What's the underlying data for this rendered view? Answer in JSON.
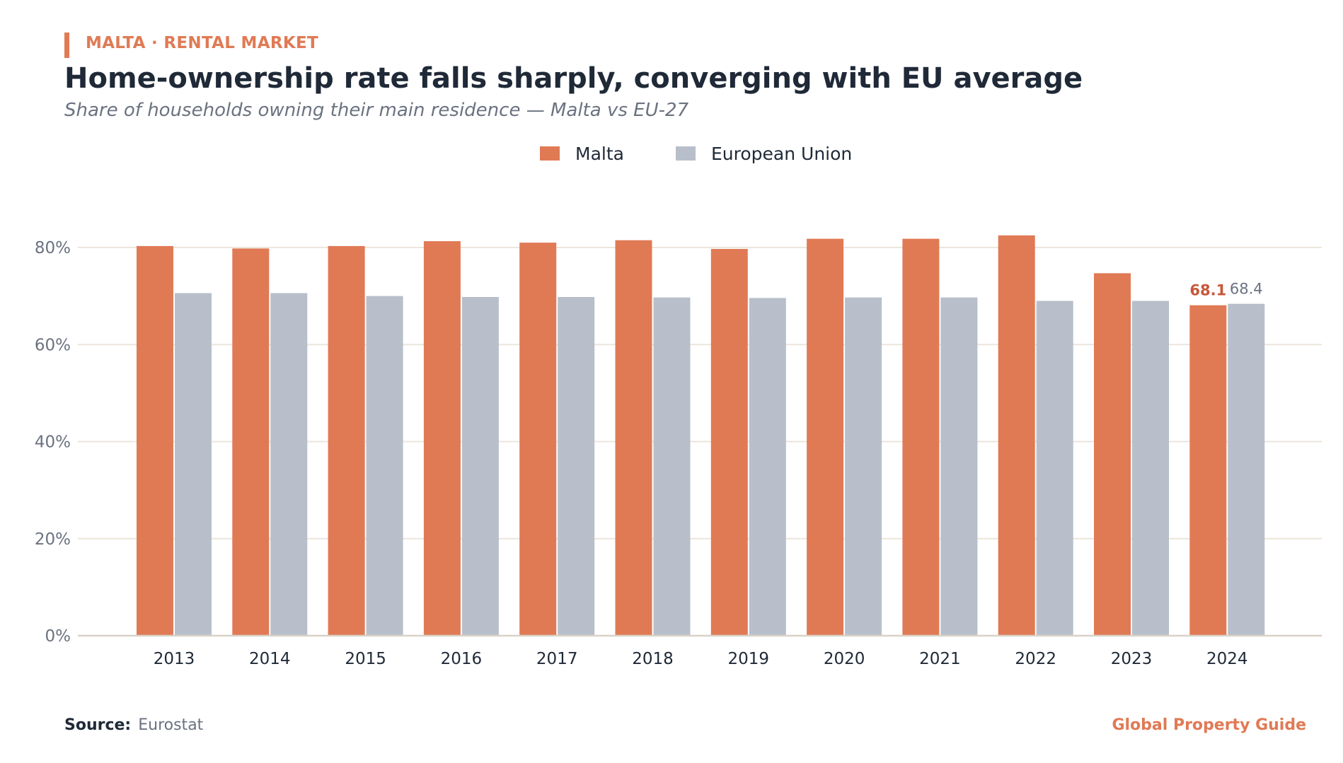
{
  "header": {
    "kicker": "MALTA · RENTAL MARKET",
    "title": "Home-ownership rate falls sharply, converging with EU average",
    "subtitle": "Share of households owning their main residence — Malta vs EU-27"
  },
  "footer": {
    "source_label": "Source:",
    "source_text": "Eurostat",
    "brand": "Global Property Guide"
  },
  "colors": {
    "malta": "#e07a55",
    "eu": "#b8bfca",
    "grid": "#ece6dc",
    "axis": "#d9d2c7",
    "tick_text": "#6b7280",
    "label_malta": "#c8573a",
    "label_eu": "#6b7280"
  },
  "chart_data": {
    "type": "bar",
    "categories": [
      "2013",
      "2014",
      "2015",
      "2016",
      "2017",
      "2018",
      "2019",
      "2020",
      "2021",
      "2022",
      "2023",
      "2024"
    ],
    "series": [
      {
        "name": "Malta",
        "values": [
          80.3,
          79.8,
          80.3,
          81.3,
          81.0,
          81.5,
          79.7,
          81.8,
          81.8,
          82.5,
          74.7,
          68.1
        ]
      },
      {
        "name": "European Union",
        "values": [
          70.6,
          70.6,
          70.0,
          69.8,
          69.8,
          69.7,
          69.6,
          69.7,
          69.7,
          69.0,
          69.0,
          68.4
        ]
      }
    ],
    "ylim": [
      0,
      90
    ],
    "yticks": [
      0,
      20,
      40,
      60,
      80
    ],
    "ytick_labels": [
      "0%",
      "20%",
      "40%",
      "60%",
      "80%"
    ],
    "grid": true,
    "legend": "top-center",
    "data_labels": [
      {
        "series": "Malta",
        "category": "2024",
        "text": "68.1"
      },
      {
        "series": "European Union",
        "category": "2024",
        "text": "68.4"
      }
    ]
  }
}
